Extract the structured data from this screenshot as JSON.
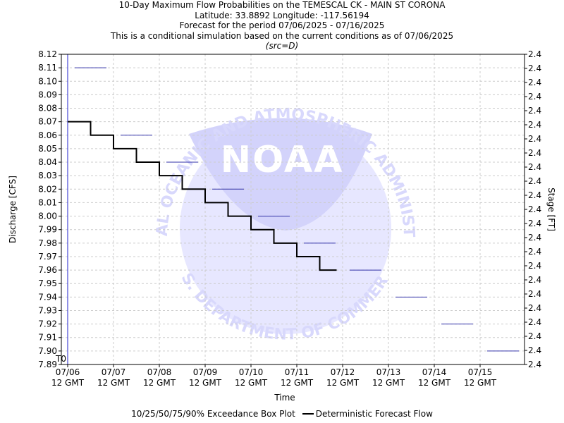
{
  "titles": {
    "line1": "10-Day Maximum Flow Probabilities on the TEMESCAL CK - MAIN ST CORONA",
    "line2": "Latitude: 33.8892 Longitude: -117.56194",
    "line3": "Forecast for the period 07/06/2025 - 07/16/2025",
    "line4": "This is a conditional simulation based on the current conditions as of 07/06/2025",
    "line5": "(src=D)"
  },
  "watermark": {
    "logo_text": "NOAA",
    "ring_top": "NATIONAL OCEANIC AND ATMOSPHERIC ADMINISTRATION",
    "ring_bottom": "U.S. DEPARTMENT OF COMMERCE"
  },
  "legend": {
    "box_label": "10/25/50/75/90% Exceedance Box Plot",
    "line_label": "Deterministic Forecast Flow"
  },
  "chart_data": {
    "type": "line",
    "xlabel": "Time",
    "ylabel": "Discharge [CFS]",
    "y2label": "Stage [FT]",
    "ylim": [
      7.89,
      8.12
    ],
    "y_ticks": [
      "8.12",
      "8.11",
      "8.10",
      "8.09",
      "8.08",
      "8.07",
      "8.06",
      "8.05",
      "8.04",
      "8.03",
      "8.02",
      "8.01",
      "8.00",
      "7.99",
      "7.98",
      "7.97",
      "7.96",
      "7.95",
      "7.94",
      "7.93",
      "7.92",
      "7.91",
      "7.90",
      "7.89"
    ],
    "y2_ticks": [
      "2.4",
      "2.4",
      "2.4",
      "2.4",
      "2.4",
      "2.4",
      "2.4",
      "2.4",
      "2.4",
      "2.4",
      "2.4",
      "2.4",
      "2.4",
      "2.4",
      "2.4",
      "2.4",
      "2.4",
      "2.4",
      "2.4",
      "2.4",
      "2.4",
      "2.4",
      "2.4"
    ],
    "x_ticks": [
      {
        "date": "07/06",
        "time": "12 GMT"
      },
      {
        "date": "07/07",
        "time": "12 GMT"
      },
      {
        "date": "07/08",
        "time": "12 GMT"
      },
      {
        "date": "07/09",
        "time": "12 GMT"
      },
      {
        "date": "07/10",
        "time": "12 GMT"
      },
      {
        "date": "07/11",
        "time": "12 GMT"
      },
      {
        "date": "07/12",
        "time": "12 GMT"
      },
      {
        "date": "07/13",
        "time": "12 GMT"
      },
      {
        "date": "07/14",
        "time": "12 GMT"
      },
      {
        "date": "07/15",
        "time": "12 GMT"
      }
    ],
    "t0_label": "T0",
    "grid": true,
    "deterministic_steps": [
      8.07,
      8.06,
      8.05,
      8.04,
      8.03,
      8.02,
      8.01,
      8.0,
      7.99,
      7.98,
      7.97,
      7.96
    ],
    "exceedance_medians": [
      8.11,
      8.06,
      8.04,
      8.02,
      8.0,
      7.98,
      7.96,
      7.94,
      7.92,
      7.9
    ],
    "colors": {
      "axis": "#000000",
      "grid": "#cccccc",
      "deterministic": "#000000",
      "box": "#3333aa",
      "t0_line": "#2222cc",
      "watermark": "#dcdcff"
    }
  }
}
